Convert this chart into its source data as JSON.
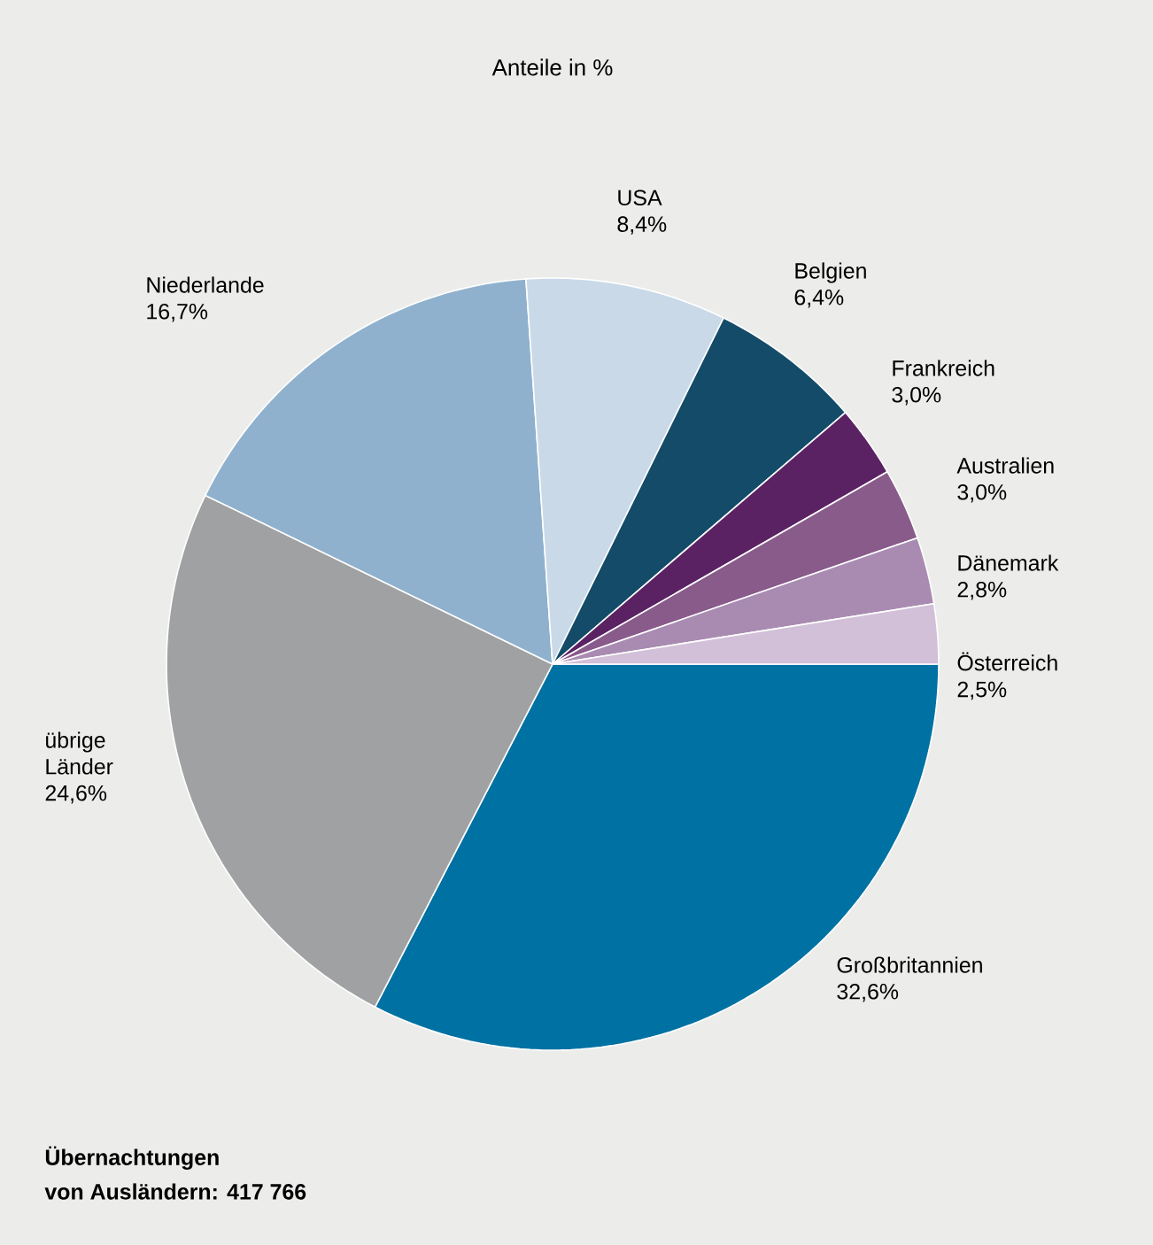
{
  "chart_data": {
    "type": "pie",
    "title": "Anteile in %",
    "categories": [
      "Großbritannien",
      "übrige Länder",
      "Niederlande",
      "USA",
      "Belgien",
      "Frankreich",
      "Australien",
      "Dänemark",
      "Österreich"
    ],
    "values": [
      32.6,
      24.6,
      16.7,
      8.4,
      6.4,
      3.0,
      3.0,
      2.8,
      2.5
    ],
    "value_labels": [
      "32,6%",
      "24,6%",
      "16,7%",
      "8,4%",
      "6,4%",
      "3,0%",
      "3,0%",
      "2,8%",
      "2,5%"
    ],
    "colors": [
      "#0071a3",
      "#a0a1a2",
      "#8fb1cd",
      "#c9d9e8",
      "#134b68",
      "#5b2263",
      "#895b8b",
      "#a98bb2",
      "#d2bfd8"
    ],
    "annotations": [
      "Übernachtungen",
      "von Ausländern: 417 766"
    ]
  }
}
